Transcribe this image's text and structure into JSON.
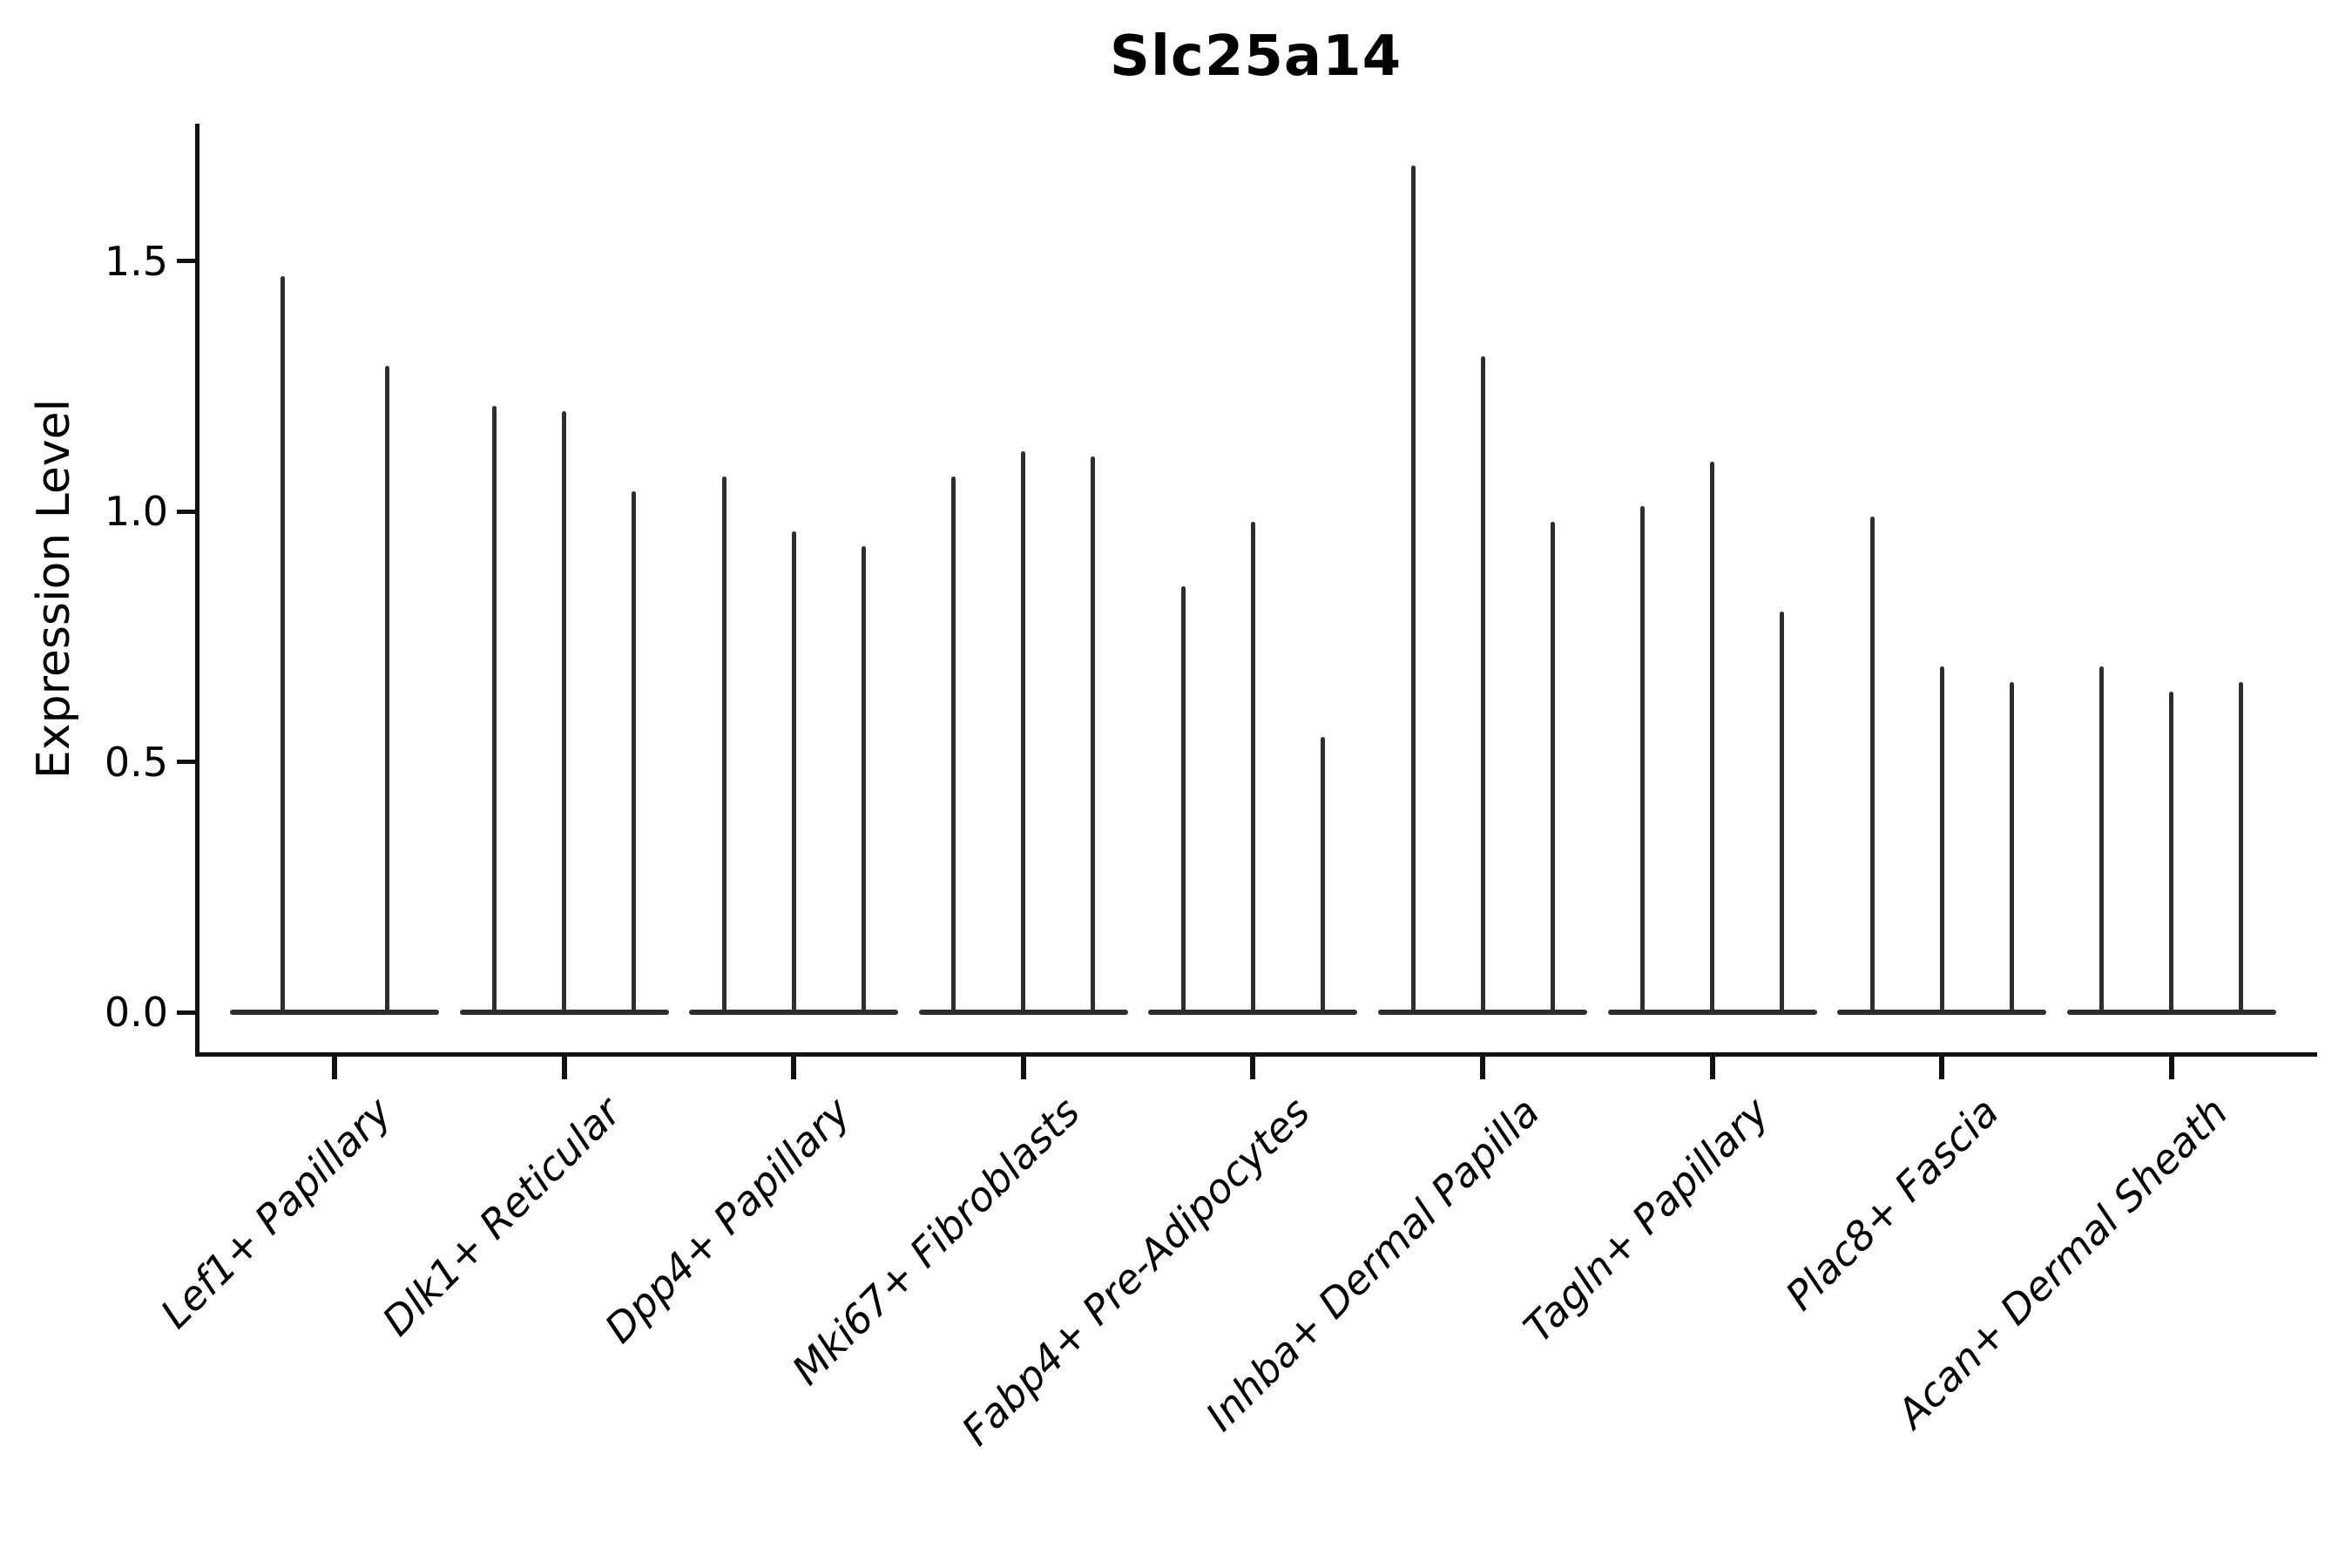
{
  "title": "Slc25a14",
  "chart_data": {
    "type": "violin",
    "title": "Slc25a14",
    "xlabel": "",
    "ylabel": "Expression Level",
    "ylim": [
      -0.08,
      1.77
    ],
    "yticks": [
      0.0,
      0.5,
      1.0,
      1.5
    ],
    "ytick_labels": [
      "0.0",
      "0.5",
      "1.0",
      "1.5"
    ],
    "grid": false,
    "legend_position": "none",
    "note": "Stacked-violin style expression plot; each cell-type group shows 1-3 extremely thin violins collapsed to vertical spikes rising from a wide flat base at expression 0. Values below are the spike-tip (max expression) heights per violin, left to right within each group.",
    "categories": [
      "Lef1+ Papillary",
      "Dlk1+ Reticular",
      "Dpp4+ Papillary",
      "Mki67+ Fibroblasts",
      "Fabp4+ Pre-Adipocytes",
      "Inhba+ Dermal Papilla",
      "Tagln+ Papillary",
      "Plac8+ Fascia",
      "Acan+ Dermal Sheath"
    ],
    "violin_max_values": [
      [
        1.47,
        1.29
      ],
      [
        1.21,
        1.2,
        1.04
      ],
      [
        1.07,
        0.96,
        0.93
      ],
      [
        1.07,
        1.12,
        1.11
      ],
      [
        0.85,
        0.98,
        0.55
      ],
      [
        1.69,
        1.31,
        0.98
      ],
      [
        1.01,
        1.1,
        0.8
      ],
      [
        0.99,
        0.69,
        0.66
      ],
      [
        0.69,
        0.64,
        0.66
      ]
    ],
    "colors": {
      "violin": "#2e2e2e",
      "axis": "#111111",
      "text": "#000000",
      "background": "#ffffff"
    }
  }
}
